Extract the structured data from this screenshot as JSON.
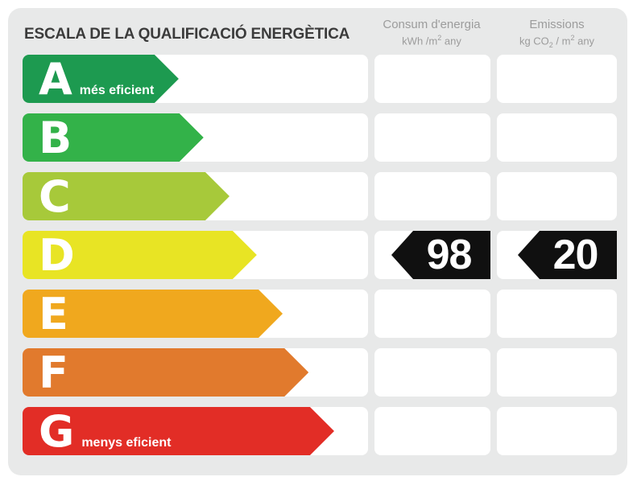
{
  "title": "ESCALA DE LA QUALIFICACIÓ ENERGÈTICA",
  "columns": {
    "consum": {
      "title": "Consum d'energia",
      "unit_pre": "kWh /m",
      "unit_sup": "2",
      "unit_post": " any"
    },
    "emissions": {
      "title": "Emissions",
      "unit_pre": "kg CO",
      "unit_sub": "2",
      "unit_mid": " / m",
      "unit_sup": "2",
      "unit_post": " any"
    }
  },
  "ratings": [
    {
      "letter": "A",
      "label": "més eficient",
      "color": "#1d9a50",
      "width_pct": 45.2
    },
    {
      "letter": "B",
      "color": "#33b249",
      "width_pct": 52.4
    },
    {
      "letter": "C",
      "color": "#a7c93a",
      "width_pct": 59.9
    },
    {
      "letter": "D",
      "color": "#e8e424",
      "width_pct": 67.8,
      "consum_value": "98",
      "emissions_value": "20"
    },
    {
      "letter": "E",
      "color": "#f0a81e",
      "width_pct": 75.3
    },
    {
      "letter": "F",
      "color": "#e17a2d",
      "width_pct": 82.8
    },
    {
      "letter": "G",
      "label": "menys eficient",
      "color": "#e22d26",
      "width_pct": 90.2
    }
  ],
  "badge_color": "#101010",
  "card_color": "#e8e9e9",
  "chart_data": {
    "type": "bar",
    "title": "ESCALA DE LA QUALIFICACIÓ ENERGÈTICA",
    "categories": [
      "A",
      "B",
      "C",
      "D",
      "E",
      "F",
      "G"
    ],
    "series": [
      {
        "name": "relative-bar-length",
        "values": [
          0.45,
          0.52,
          0.6,
          0.68,
          0.75,
          0.83,
          0.9
        ]
      }
    ],
    "bar_colors": [
      "#1d9a50",
      "#33b249",
      "#a7c93a",
      "#e8e424",
      "#f0a81e",
      "#e17a2d",
      "#e22d26"
    ],
    "annotations": [
      "A més eficient",
      "G menys eficient"
    ],
    "highlighted_category": "D",
    "values": {
      "consum_kwh_m2_any": 98,
      "emissions_kg_co2_m2_any": 20
    },
    "column_labels": [
      "Consum d'energia kWh/m2 any",
      "Emissions kg CO2/m2 any"
    ],
    "legend_position": "none",
    "grid": false
  }
}
